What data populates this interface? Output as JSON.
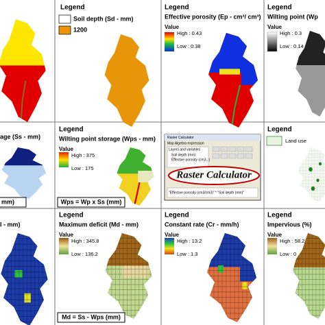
{
  "soil_depth": {
    "legend": "Legend",
    "title": "Soil depth (Sd - mm)",
    "classes": [
      "1200"
    ]
  },
  "porosity": {
    "legend": "Legend",
    "title": "Effective porosity (Ep - cm³/ cm³)",
    "value": "Value",
    "high": "High : 0.43",
    "low": "Low : 0.38"
  },
  "wilting_point": {
    "legend": "Legend",
    "title": "Wilting point (Wp",
    "value": "Value",
    "high": "High : 0.3",
    "low": "Low : 0.14"
  },
  "storage": {
    "title": "age (Ss - mm)",
    "equation": "mm)"
  },
  "wps": {
    "legend": "Legend",
    "title": "Wilting point storage (Wps - mm)",
    "value": "Value",
    "high": "High : 375",
    "low": "Low : 175",
    "equation": "Wps = Wp x Ss (mm)"
  },
  "calculator": {
    "window_title": "Raster Calculator",
    "expression_label": "Map Algebra expression",
    "layers_label": "Layers and variables",
    "layers": [
      "Soil depth (mm)",
      "Effective porosity (cm3...)"
    ],
    "expression": "\"Effective porosity (cm3/cm3)\" * \"Soil depth (mm)\"",
    "banner": "Raster Calculator"
  },
  "land_use": {
    "legend": "Legend",
    "title": "Land use"
  },
  "deficit_cropped": {
    "title": "l - mm)"
  },
  "deficit": {
    "legend": "Legend",
    "title": "Maximum deficit (Md - mm)",
    "value": "Value",
    "high": "High : 345.8",
    "low": "Low : 136.2",
    "equation": "Md = Ss - Wps (mm)"
  },
  "constant_rate": {
    "legend": "Legend",
    "title": "Constant rate (Cr - mm/h)",
    "value": "Value",
    "high": "High : 13.2",
    "low": "Low : 1.3"
  },
  "impervious": {
    "legend": "Legend",
    "title": "Impervious (%)",
    "value": "Value",
    "high": "High : 58.2",
    "low": "Low : 0"
  }
}
